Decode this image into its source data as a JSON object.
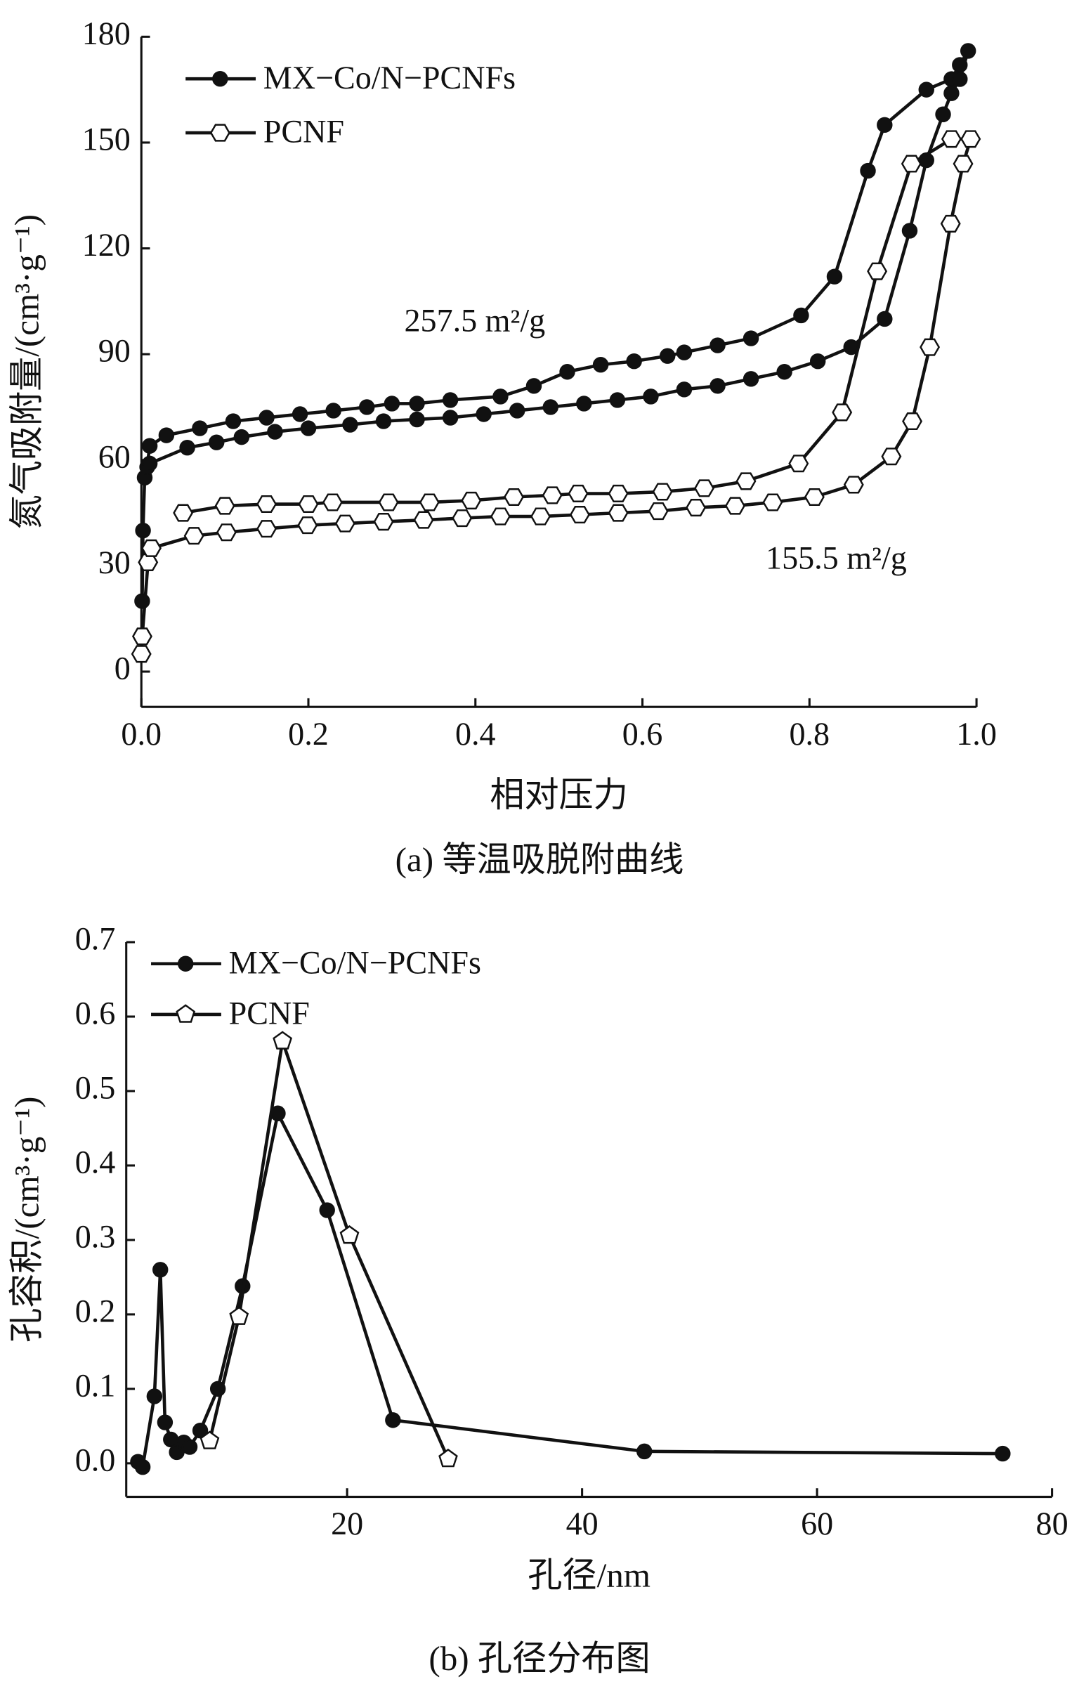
{
  "chart_data": [
    {
      "type": "line",
      "title": "(a) 等温吸脱附曲线",
      "x_label": "相对压力",
      "y_label": "氮气吸附量/(cm³·g⁻¹)",
      "annotations": [
        "257.5 m²/g",
        "155.5 m²/g"
      ],
      "xlim": [
        0,
        1
      ],
      "ylim": [
        -10,
        180
      ],
      "xticks": [
        {
          "value": 0,
          "label": "0.0"
        },
        0.2,
        0.4,
        0.6,
        0.8,
        {
          "value": 1,
          "label": "1.0"
        }
      ],
      "yticks": [
        0,
        30,
        60,
        90,
        120,
        150,
        180
      ],
      "legend": "upper left",
      "series": [
        {
          "name": "MX−Co/N−PCNFs",
          "color": "#111111",
          "marker": "circle",
          "x": [
            0.001,
            0.002,
            0.004,
            0.007,
            0.01,
            0.03,
            0.07,
            0.11,
            0.15,
            0.19,
            0.23,
            0.27,
            0.3,
            0.33,
            0.37,
            0.43,
            0.47,
            0.51,
            0.55,
            0.59,
            0.63,
            0.65,
            0.69,
            0.73,
            0.79,
            0.83,
            0.87,
            0.89,
            0.94,
            0.97,
            0.98,
            0.99,
            0.98,
            0.97,
            0.96,
            0.94,
            0.92,
            0.89,
            0.85,
            0.81,
            0.77,
            0.73,
            0.69,
            0.65,
            0.61,
            0.57,
            0.53,
            0.49,
            0.45,
            0.41,
            0.37,
            0.33,
            0.29,
            0.25,
            0.2,
            0.16,
            0.12,
            0.09,
            0.055,
            0.01
          ],
          "values": [
            20,
            40,
            55,
            58,
            64,
            67,
            69,
            71,
            72,
            73,
            74,
            75,
            76,
            76,
            77,
            78,
            81,
            85,
            87,
            88,
            89.5,
            90.5,
            92.5,
            94.5,
            101,
            112,
            142,
            155,
            165,
            168,
            172,
            176,
            168,
            164,
            158,
            145,
            125,
            100,
            92,
            88,
            85,
            83,
            81,
            80,
            78,
            77,
            76,
            75,
            74,
            73,
            72,
            71.5,
            71,
            70,
            69,
            68,
            66.5,
            65,
            63.5,
            59
          ]
        },
        {
          "name": "PCNF",
          "color": "#111111",
          "marker": "hexagon",
          "x": [
            0,
            0.001,
            0.008,
            0.012,
            0.063,
            0.102,
            0.15,
            0.199,
            0.244,
            0.29,
            0.338,
            0.384,
            0.43,
            0.478,
            0.525,
            0.571,
            0.619,
            0.664,
            0.711,
            0.756,
            0.806,
            0.853,
            0.898,
            0.923,
            0.944,
            0.969,
            0.984,
            0.993,
            0.97,
            0.922,
            0.881,
            0.839,
            0.787,
            0.724,
            0.674,
            0.624,
            0.571,
            0.523,
            0.492,
            0.446,
            0.395,
            0.345,
            0.296,
            0.229,
            0.2,
            0.15,
            0.1,
            0.05
          ],
          "values": [
            5,
            10,
            31,
            35,
            38.5,
            39.5,
            40.5,
            41.5,
            42,
            42.5,
            43,
            43.5,
            44,
            44,
            44.5,
            45,
            45.5,
            46.5,
            47,
            48,
            49.5,
            53,
            61,
            71,
            92,
            127,
            144,
            151,
            151,
            144,
            113.5,
            73.5,
            59,
            54,
            52,
            51,
            50.5,
            50.5,
            50,
            49.5,
            48.5,
            48,
            48,
            48,
            47.5,
            47.5,
            47,
            45
          ]
        }
      ]
    },
    {
      "type": "line",
      "title": "(b) 孔径分布图",
      "x_label": "孔径/nm",
      "y_label": "孔容积/(cm³·g⁻¹)",
      "xlim": [
        1.2,
        80
      ],
      "ylim": [
        -0.045,
        0.7
      ],
      "xticks": [
        20,
        40,
        60,
        80
      ],
      "yticks": [
        {
          "value": 0,
          "label": "0.0"
        },
        0.1,
        0.2,
        0.3,
        0.4,
        0.5,
        0.6,
        0.7
      ],
      "legend": "upper left",
      "series": [
        {
          "name": "MX−Co/N−PCNFs",
          "color": "#111111",
          "marker": "circle",
          "x": [
            2.2,
            2.6,
            3.6,
            4.1,
            4.5,
            5.0,
            5.5,
            6.1,
            6.6,
            7.5,
            9.0,
            11.1,
            14.1,
            18.3,
            23.9,
            45.3,
            75.8
          ],
          "values": [
            0.002,
            -0.005,
            0.09,
            0.26,
            0.055,
            0.032,
            0.015,
            0.028,
            0.022,
            0.044,
            0.1,
            0.238,
            0.47,
            0.34,
            0.058,
            0.016,
            0.013
          ]
        },
        {
          "name": "PCNF",
          "color": "#111111",
          "marker": "pentagon",
          "x": [
            8.3,
            10.8,
            14.5,
            20.2,
            28.6
          ],
          "values": [
            0.03,
            0.197,
            0.567,
            0.306,
            0.006
          ]
        }
      ]
    }
  ]
}
